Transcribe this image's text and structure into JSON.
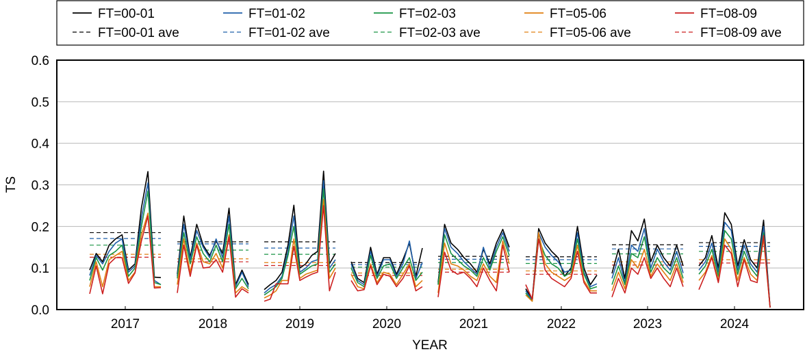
{
  "chart_data": {
    "type": "line",
    "xlabel": "YEAR",
    "ylabel": "TS",
    "ylim": [
      0,
      0.6
    ],
    "y_ticks": [
      "0.0",
      "0.1",
      "0.2",
      "0.3",
      "0.4",
      "0.5",
      "0.6"
    ],
    "year_labels": [
      "2017",
      "2018",
      "2019",
      "2020",
      "2021",
      "2022",
      "2023",
      "2024"
    ],
    "grid": "horizontal",
    "legend_position": "top, outside plot",
    "series": [
      {
        "name": "FT=00-01",
        "ave_name": "FT=00-01 ave",
        "color": "#000000",
        "ave": [
          0.185,
          0.163,
          0.163,
          0.113,
          0.128,
          0.127,
          0.156,
          0.161
        ],
        "segments": [
          [
            0.095,
            0.135,
            0.115,
            0.155,
            0.17,
            0.18,
            0.095,
            0.11,
            0.245,
            0.332,
            0.078,
            0.077
          ],
          [
            0.085,
            0.225,
            0.125,
            0.205,
            0.155,
            0.13,
            0.165,
            0.135,
            0.244,
            0.06,
            0.095,
            0.06
          ],
          [
            0.048,
            0.06,
            0.07,
            0.09,
            0.155,
            0.251,
            0.1,
            0.11,
            0.13,
            0.14,
            0.333,
            0.11,
            0.135
          ],
          [
            0.115,
            0.075,
            0.065,
            0.15,
            0.085,
            0.125,
            0.125,
            0.085,
            0.12,
            0.16,
            0.08,
            0.148
          ],
          [
            0.065,
            0.205,
            0.16,
            0.145,
            0.125,
            0.11,
            0.09,
            0.145,
            0.11,
            0.16,
            0.193,
            0.15
          ],
          [
            0.05,
            0.025,
            0.195,
            0.16,
            0.14,
            0.125,
            0.08,
            0.1,
            0.2,
            0.1,
            0.06,
            0.083
          ],
          [
            0.087,
            0.145,
            0.075,
            0.19,
            0.165,
            0.218,
            0.115,
            0.155,
            0.125,
            0.105,
            0.155,
            0.105
          ],
          [
            0.105,
            0.125,
            0.178,
            0.1,
            0.233,
            0.205,
            0.105,
            0.168,
            0.12,
            0.1,
            0.215,
            0.005
          ]
        ]
      },
      {
        "name": "FT=01-02",
        "ave_name": "FT=01-02 ave",
        "color": "#1f5fa9",
        "ave": [
          0.171,
          0.158,
          0.148,
          0.108,
          0.121,
          0.12,
          0.146,
          0.152
        ],
        "segments": [
          [
            0.082,
            0.13,
            0.11,
            0.14,
            0.16,
            0.17,
            0.09,
            0.105,
            0.22,
            0.305,
            0.07,
            0.06
          ],
          [
            0.08,
            0.205,
            0.12,
            0.19,
            0.15,
            0.125,
            0.17,
            0.125,
            0.225,
            0.055,
            0.09,
            0.055
          ],
          [
            0.04,
            0.052,
            0.06,
            0.08,
            0.14,
            0.225,
            0.09,
            0.1,
            0.115,
            0.12,
            0.31,
            0.1,
            0.12
          ],
          [
            0.11,
            0.07,
            0.06,
            0.14,
            0.08,
            0.12,
            0.12,
            0.08,
            0.11,
            0.165,
            0.075,
            0.113
          ],
          [
            0.06,
            0.195,
            0.15,
            0.135,
            0.115,
            0.1,
            0.085,
            0.15,
            0.1,
            0.15,
            0.185,
            0.14
          ],
          [
            0.045,
            0.022,
            0.185,
            0.15,
            0.13,
            0.115,
            0.09,
            0.095,
            0.185,
            0.09,
            0.055,
            0.062
          ],
          [
            0.075,
            0.125,
            0.065,
            0.155,
            0.14,
            0.195,
            0.1,
            0.145,
            0.115,
            0.095,
            0.14,
            0.088
          ],
          [
            0.095,
            0.115,
            0.16,
            0.09,
            0.21,
            0.19,
            0.095,
            0.155,
            0.11,
            0.09,
            0.2,
            0.005
          ]
        ]
      },
      {
        "name": "FT=02-03",
        "ave_name": "FT=02-03 ave",
        "color": "#1a9444",
        "ave": [
          0.155,
          0.143,
          0.133,
          0.102,
          0.113,
          0.111,
          0.134,
          0.14
        ],
        "segments": [
          [
            0.07,
            0.125,
            0.095,
            0.13,
            0.14,
            0.155,
            0.08,
            0.1,
            0.2,
            0.285,
            0.065,
            0.06
          ],
          [
            0.075,
            0.185,
            0.11,
            0.175,
            0.135,
            0.115,
            0.155,
            0.115,
            0.205,
            0.05,
            0.075,
            0.05
          ],
          [
            0.035,
            0.045,
            0.055,
            0.075,
            0.13,
            0.2,
            0.085,
            0.095,
            0.105,
            0.11,
            0.29,
            0.09,
            0.11
          ],
          [
            0.1,
            0.065,
            0.055,
            0.13,
            0.075,
            0.105,
            0.11,
            0.075,
            0.1,
            0.125,
            0.07,
            0.09
          ],
          [
            0.06,
            0.18,
            0.135,
            0.12,
            0.105,
            0.095,
            0.08,
            0.125,
            0.095,
            0.14,
            0.175,
            0.13
          ],
          [
            0.04,
            0.02,
            0.17,
            0.13,
            0.11,
            0.1,
            0.08,
            0.09,
            0.17,
            0.085,
            0.05,
            0.055
          ],
          [
            0.06,
            0.105,
            0.06,
            0.135,
            0.125,
            0.175,
            0.09,
            0.125,
            0.1,
            0.085,
            0.125,
            0.075
          ],
          [
            0.085,
            0.105,
            0.145,
            0.08,
            0.19,
            0.17,
            0.085,
            0.14,
            0.1,
            0.08,
            0.185,
            0.005
          ]
        ]
      },
      {
        "name": "FT=05-06",
        "ave_name": "FT=05-06 ave",
        "color": "#e07f10",
        "ave": [
          0.133,
          0.122,
          0.113,
          0.088,
          0.097,
          0.093,
          0.115,
          0.12
        ],
        "segments": [
          [
            0.055,
            0.115,
            0.055,
            0.12,
            0.13,
            0.14,
            0.07,
            0.09,
            0.18,
            0.232,
            0.055,
            0.055
          ],
          [
            0.06,
            0.17,
            0.09,
            0.16,
            0.115,
            0.11,
            0.135,
            0.1,
            0.18,
            0.04,
            0.055,
            0.045
          ],
          [
            0.028,
            0.035,
            0.045,
            0.07,
            0.07,
            0.17,
            0.075,
            0.085,
            0.09,
            0.095,
            0.265,
            0.075,
            0.1
          ],
          [
            0.085,
            0.055,
            0.05,
            0.11,
            0.065,
            0.09,
            0.085,
            0.06,
            0.085,
            0.11,
            0.055,
            0.07
          ],
          [
            0.04,
            0.16,
            0.11,
            0.105,
            0.095,
            0.08,
            0.07,
            0.11,
            0.08,
            0.065,
            0.165,
            0.11
          ],
          [
            0.035,
            0.02,
            0.185,
            0.11,
            0.09,
            0.08,
            0.07,
            0.08,
            0.155,
            0.07,
            0.045,
            0.045
          ],
          [
            0.045,
            0.09,
            0.05,
            0.12,
            0.1,
            0.145,
            0.08,
            0.11,
            0.09,
            0.07,
            0.11,
            0.065
          ],
          [
            0.07,
            0.09,
            0.13,
            0.07,
            0.17,
            0.145,
            0.07,
            0.125,
            0.085,
            0.07,
            0.17,
            0.005
          ]
        ]
      },
      {
        "name": "FT=08-09",
        "ave_name": "FT=08-09 ave",
        "color": "#cc1f1f",
        "ave": [
          0.126,
          0.115,
          0.106,
          0.082,
          0.09,
          0.085,
          0.107,
          0.112
        ],
        "segments": [
          [
            0.038,
            0.105,
            0.038,
            0.11,
            0.125,
            0.125,
            0.063,
            0.088,
            0.165,
            0.225,
            0.052,
            0.053
          ],
          [
            0.04,
            0.155,
            0.08,
            0.155,
            0.1,
            0.102,
            0.12,
            0.09,
            0.175,
            0.03,
            0.05,
            0.04
          ],
          [
            0.02,
            0.025,
            0.062,
            0.062,
            0.062,
            0.152,
            0.07,
            0.078,
            0.085,
            0.09,
            0.25,
            0.045,
            0.09
          ],
          [
            0.07,
            0.045,
            0.048,
            0.105,
            0.06,
            0.085,
            0.08,
            0.055,
            0.075,
            0.105,
            0.045,
            0.055
          ],
          [
            0.03,
            0.138,
            0.095,
            0.085,
            0.09,
            0.075,
            0.055,
            0.1,
            0.07,
            0.045,
            0.155,
            0.09
          ],
          [
            0.06,
            0.025,
            0.17,
            0.095,
            0.075,
            0.065,
            0.055,
            0.075,
            0.14,
            0.065,
            0.04,
            0.04
          ],
          [
            0.03,
            0.075,
            0.04,
            0.1,
            0.085,
            0.125,
            0.075,
            0.1,
            0.075,
            0.055,
            0.1,
            0.055
          ],
          [
            0.048,
            0.085,
            0.125,
            0.065,
            0.155,
            0.135,
            0.055,
            0.12,
            0.07,
            0.065,
            0.178,
            0.005
          ]
        ]
      }
    ]
  }
}
